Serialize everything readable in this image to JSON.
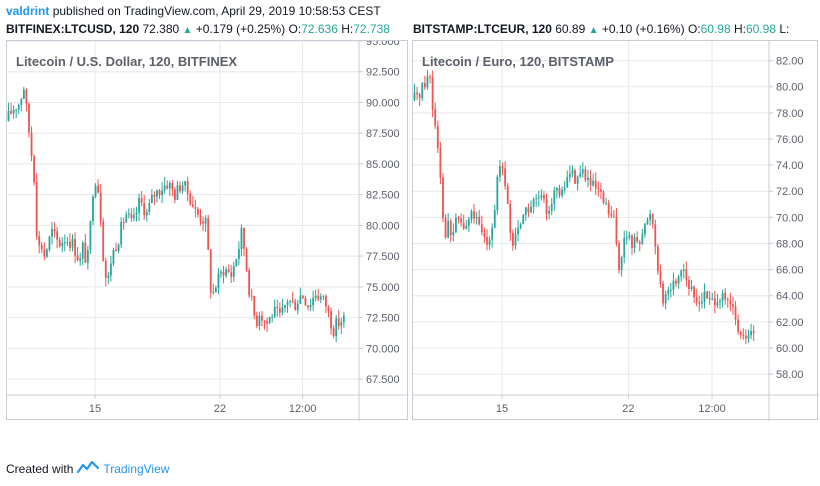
{
  "header": {
    "user": "valdrint",
    "published_text": "published on TradingView.com, April 29, 2019 10:58:53 CEST"
  },
  "footer": {
    "created_text": "Created with",
    "brand": "TradingView"
  },
  "colors": {
    "up": "#26a69a",
    "down": "#ef5350",
    "grid": "#e6e8eb",
    "border": "#c8ccd4",
    "brand": "#2196f3"
  },
  "chart_data": [
    {
      "type": "candlestick",
      "symbol_line": {
        "symbol": "BITFINEX:LTCUSD, 120",
        "last": "72.380",
        "change": "+0.179 (+0.25%)",
        "o_label": "O:",
        "o_value": "72.636",
        "h_label": "H:",
        "h_value": "72.738"
      },
      "title": "Litecoin / U.S. Dollar, 120, BITFINEX",
      "yticks": [
        "95.000",
        "92.500",
        "90.000",
        "87.500",
        "85.000",
        "82.500",
        "80.000",
        "77.500",
        "75.000",
        "72.500",
        "70.000",
        "67.500"
      ],
      "ylim": [
        66.2,
        95.0
      ],
      "xticks": [
        "15",
        "22",
        "12:00"
      ],
      "xlim": [
        0,
        100
      ],
      "xtick_positions": [
        25,
        60.5,
        84
      ],
      "path": [
        [
          0,
          88.5
        ],
        [
          2,
          89.5
        ],
        [
          4,
          90.0
        ],
        [
          5,
          91.5
        ],
        [
          6,
          89.0
        ],
        [
          7,
          86.5
        ],
        [
          8,
          84.0
        ],
        [
          9,
          78.0
        ],
        [
          10,
          78.5
        ],
        [
          11,
          77.5
        ],
        [
          13,
          79.5
        ],
        [
          15,
          78.5
        ],
        [
          17,
          79.0
        ],
        [
          19,
          78.5
        ],
        [
          21,
          77.0
        ],
        [
          22,
          78.5
        ],
        [
          23,
          76.5
        ],
        [
          24,
          80.0
        ],
        [
          25,
          84.0
        ],
        [
          26,
          83.5
        ],
        [
          27,
          80.5
        ],
        [
          28,
          76.0
        ],
        [
          29,
          75.5
        ],
        [
          30,
          77.5
        ],
        [
          32,
          79.0
        ],
        [
          34,
          81.0
        ],
        [
          36,
          80.0
        ],
        [
          38,
          82.0
        ],
        [
          40,
          81.0
        ],
        [
          42,
          82.5
        ],
        [
          44,
          83.0
        ],
        [
          46,
          83.5
        ],
        [
          48,
          82.5
        ],
        [
          50,
          83.5
        ],
        [
          52,
          82.5
        ],
        [
          54,
          81.0
        ],
        [
          56,
          80.5
        ],
        [
          57,
          80.0
        ],
        [
          58,
          75.0
        ],
        [
          59,
          74.5
        ],
        [
          60,
          75.5
        ],
        [
          62,
          76.5
        ],
        [
          64,
          76.0
        ],
        [
          66,
          78.0
        ],
        [
          67,
          79.5
        ],
        [
          68,
          77.5
        ],
        [
          69,
          75.0
        ],
        [
          70,
          73.5
        ],
        [
          71,
          72.0
        ],
        [
          72,
          73.0
        ],
        [
          74,
          72.0
        ],
        [
          76,
          73.0
        ],
        [
          78,
          72.5
        ],
        [
          80,
          74.0
        ],
        [
          82,
          73.5
        ],
        [
          84,
          74.5
        ],
        [
          86,
          73.5
        ],
        [
          88,
          74.5
        ],
        [
          90,
          74.0
        ],
        [
          91,
          73.5
        ],
        [
          92,
          72.5
        ],
        [
          93,
          71.5
        ],
        [
          94,
          72.0
        ],
        [
          96,
          72.4
        ]
      ]
    },
    {
      "type": "candlestick",
      "symbol_line": {
        "symbol": "BITSTAMP:LTCEUR, 120",
        "last": "60.89",
        "change": "+0.10 (+0.16%)",
        "o_label": "O:",
        "o_value": "60.98",
        "h_label": "H:",
        "h_value": "60.98",
        "l_label": "L:"
      },
      "title": "Litecoin / Euro, 120, BITSTAMP",
      "yticks": [
        "82.00",
        "80.00",
        "78.00",
        "76.00",
        "74.00",
        "72.00",
        "70.00",
        "68.00",
        "66.00",
        "64.00",
        "62.00",
        "60.00",
        "58.00"
      ],
      "ylim": [
        56.4,
        83.5
      ],
      "xticks": [
        "15",
        "22",
        "12:00"
      ],
      "xlim": [
        0,
        100
      ],
      "xtick_positions": [
        25,
        60.5,
        84
      ],
      "path": [
        [
          0,
          79.0
        ],
        [
          2,
          79.5
        ],
        [
          4,
          80.5
        ],
        [
          5,
          81.0
        ],
        [
          6,
          78.0
        ],
        [
          7,
          76.5
        ],
        [
          8,
          73.5
        ],
        [
          9,
          68.5
        ],
        [
          10,
          69.5
        ],
        [
          11,
          68.5
        ],
        [
          13,
          70.0
        ],
        [
          15,
          69.0
        ],
        [
          17,
          70.5
        ],
        [
          19,
          69.0
        ],
        [
          21,
          68.0
        ],
        [
          23,
          70.0
        ],
        [
          24,
          73.0
        ],
        [
          25,
          74.0
        ],
        [
          26,
          72.5
        ],
        [
          27,
          71.0
        ],
        [
          28,
          67.5
        ],
        [
          29,
          68.5
        ],
        [
          30,
          69.5
        ],
        [
          32,
          70.5
        ],
        [
          34,
          71.0
        ],
        [
          36,
          71.5
        ],
        [
          38,
          70.5
        ],
        [
          40,
          72.0
        ],
        [
          42,
          71.5
        ],
        [
          44,
          73.5
        ],
        [
          46,
          73.0
        ],
        [
          48,
          73.5
        ],
        [
          50,
          72.5
        ],
        [
          52,
          72.0
        ],
        [
          54,
          71.0
        ],
        [
          56,
          70.0
        ],
        [
          57,
          69.5
        ],
        [
          58,
          66.0
        ],
        [
          59,
          67.5
        ],
        [
          60,
          68.5
        ],
        [
          62,
          68.0
        ],
        [
          64,
          68.5
        ],
        [
          66,
          69.5
        ],
        [
          67,
          70.5
        ],
        [
          68,
          69.0
        ],
        [
          69,
          66.5
        ],
        [
          70,
          64.5
        ],
        [
          71,
          63.5
        ],
        [
          72,
          64.5
        ],
        [
          74,
          65.0
        ],
        [
          76,
          66.5
        ],
        [
          78,
          64.5
        ],
        [
          80,
          63.5
        ],
        [
          82,
          64.0
        ],
        [
          84,
          63.5
        ],
        [
          86,
          64.0
        ],
        [
          88,
          63.5
        ],
        [
          90,
          63.0
        ],
        [
          91,
          62.0
        ],
        [
          92,
          61.0
        ],
        [
          93,
          60.5
        ],
        [
          94,
          61.0
        ],
        [
          96,
          60.9
        ]
      ]
    }
  ]
}
